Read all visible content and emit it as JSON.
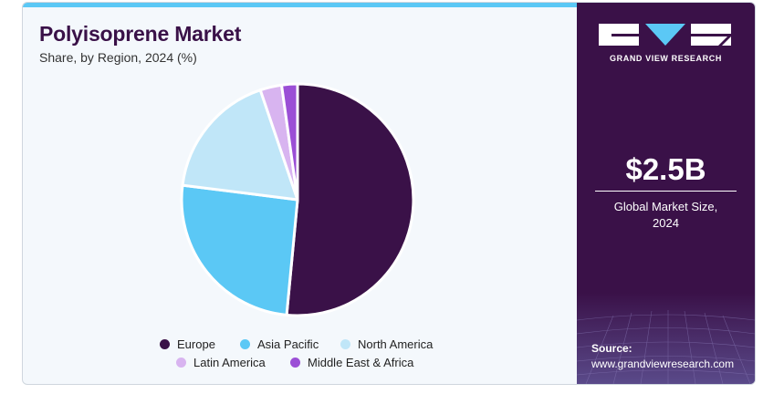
{
  "header": {
    "title": "Polyisoprene Market",
    "subtitle": "Share, by Region, 2024 (%)"
  },
  "chart_data": {
    "type": "pie",
    "title": "Polyisoprene Market",
    "subtitle": "Share, by Region, 2024 (%)",
    "categories": [
      "Europe",
      "Asia Pacific",
      "North America",
      "Latin America",
      "Middle East & Africa"
    ],
    "values": [
      51.5,
      25.5,
      17.8,
      3.0,
      2.2
    ],
    "colors": [
      "#3a1148",
      "#5bc8f5",
      "#c0e6f8",
      "#d8b4f0",
      "#9b4fd6"
    ],
    "legend_position": "bottom"
  },
  "legend": {
    "items": [
      {
        "label": "Europe",
        "color": "#3a1148"
      },
      {
        "label": "Asia Pacific",
        "color": "#5bc8f5"
      },
      {
        "label": "North America",
        "color": "#c0e6f8"
      },
      {
        "label": "Latin America",
        "color": "#d8b4f0"
      },
      {
        "label": "Middle East & Africa",
        "color": "#9b4fd6"
      }
    ]
  },
  "sidebar": {
    "brand": "GRAND VIEW RESEARCH",
    "stat_value": "$2.5B",
    "stat_label_line1": "Global Market Size,",
    "stat_label_line2": "2024",
    "source_label": "Source:",
    "source_url": "www.grandviewresearch.com"
  },
  "colors": {
    "accent": "#5bc8f5",
    "panel": "#3a1148"
  }
}
